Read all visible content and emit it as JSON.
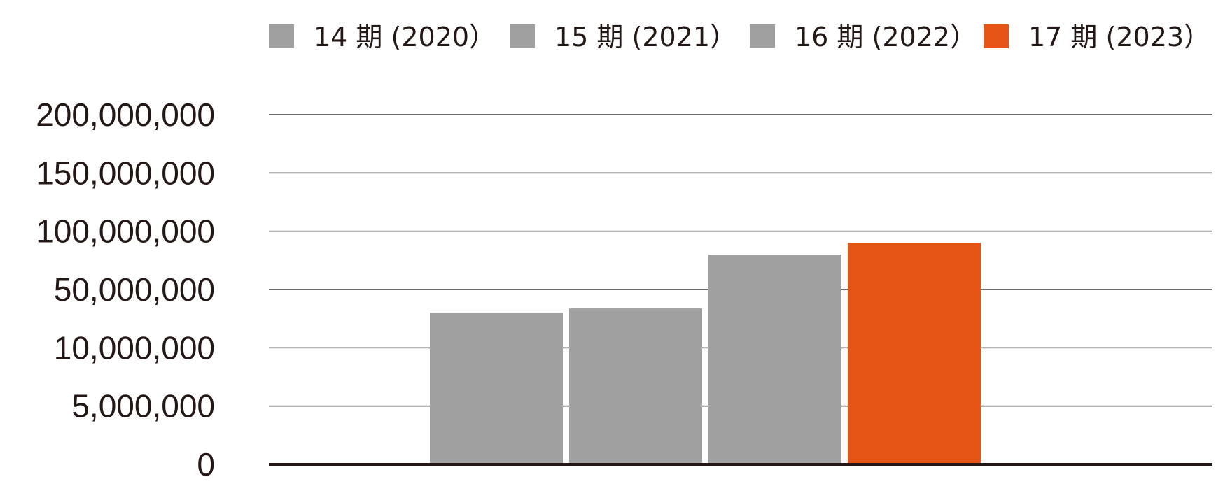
{
  "chart_data": {
    "type": "bar",
    "categories": [
      "14 期 (2020）",
      "15 期 (2021）",
      "16 期 (2022）",
      "17 期 (2023）"
    ],
    "tick_labels": [
      "0",
      "5,000,000",
      "10,000,000",
      "50,000,000",
      "100,000,000",
      "150,000,000",
      "200,000,000"
    ],
    "tick_values": [
      0,
      5000000,
      10000000,
      50000000,
      100000000,
      150000000,
      200000000
    ],
    "values": [
      34000000,
      37000000,
      80000000,
      90000000
    ],
    "colors": [
      "#a0a0a0",
      "#a0a0a0",
      "#a0a0a0",
      "#e75516"
    ],
    "legend": [
      {
        "label": "14 期 (2020）",
        "color": "#a0a0a0"
      },
      {
        "label": "15 期 (2021）",
        "color": "#a0a0a0"
      },
      {
        "label": "16 期 (2022）",
        "color": "#a0a0a0"
      },
      {
        "label": "17 期 (2023）",
        "color": "#e75516"
      }
    ],
    "legend_position": "top",
    "grid": true,
    "axis_scale": "non-linear (evenly spaced ticks)"
  }
}
